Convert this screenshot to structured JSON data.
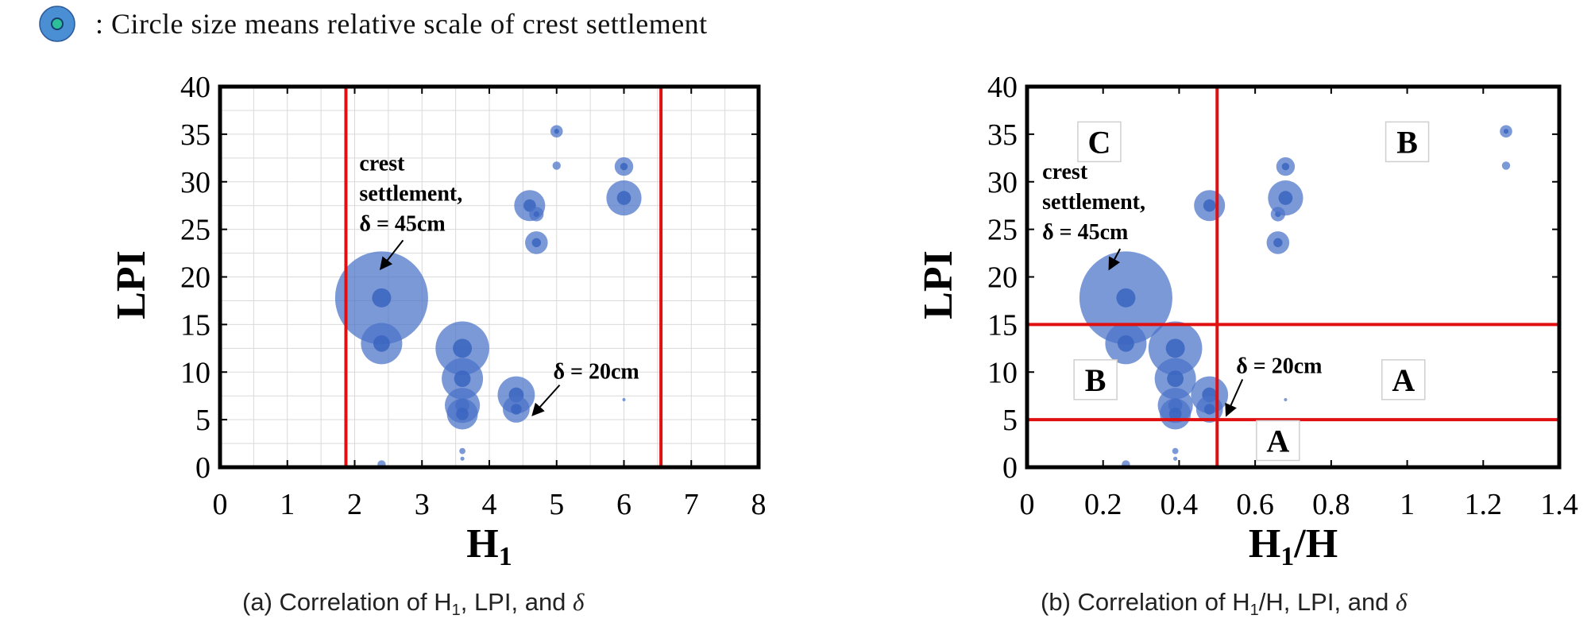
{
  "legend": {
    "icon": "circle-size-icon",
    "text": ": Circle size means relative scale of crest settlement"
  },
  "captions": {
    "a": {
      "pre": "(a) Correlation of H",
      "sub": "1",
      "post": ", LPI, and "
    },
    "b": {
      "pre": "(b) Correlation of H",
      "sub": "1",
      "post": "/H, LPI, and "
    },
    "delta": "δ"
  },
  "colors": {
    "bubble": "#4a72c8",
    "bubble_core": "#3a64c0",
    "red_line": "#e01010",
    "axis": "#000000",
    "grid": "#d9d9d9"
  },
  "chart_data": [
    {
      "type": "scatter",
      "variant": "bubble",
      "xlabel": "H",
      "xlabel_sub": "1",
      "ylabel": "LPI",
      "xlim": [
        0,
        8
      ],
      "ylim": [
        0,
        40
      ],
      "xticks": [
        "0",
        "1",
        "2",
        "3",
        "4",
        "5",
        "6",
        "7",
        "8"
      ],
      "yticks": [
        "0",
        "5",
        "10",
        "15",
        "20",
        "25",
        "30",
        "35",
        "40"
      ],
      "grid": true,
      "vlines": [
        1.87,
        6.55
      ],
      "points": [
        {
          "x": 2.4,
          "y": 17.8,
          "size": 45
        },
        {
          "x": 2.4,
          "y": 13.0,
          "size": 20
        },
        {
          "x": 3.6,
          "y": 12.5,
          "size": 26
        },
        {
          "x": 3.6,
          "y": 9.3,
          "size": 20
        },
        {
          "x": 3.6,
          "y": 6.5,
          "size": 17
        },
        {
          "x": 3.6,
          "y": 5.6,
          "size": 15
        },
        {
          "x": 4.4,
          "y": 7.6,
          "size": 18
        },
        {
          "x": 4.4,
          "y": 6.1,
          "size": 13
        },
        {
          "x": 4.6,
          "y": 27.5,
          "size": 15
        },
        {
          "x": 4.7,
          "y": 26.6,
          "size": 7
        },
        {
          "x": 4.7,
          "y": 23.6,
          "size": 11
        },
        {
          "x": 5.0,
          "y": 35.3,
          "size": 6
        },
        {
          "x": 5.0,
          "y": 31.7,
          "size": 4
        },
        {
          "x": 6.0,
          "y": 31.6,
          "size": 9
        },
        {
          "x": 6.0,
          "y": 28.3,
          "size": 17
        },
        {
          "x": 6.0,
          "y": 7.1,
          "size": 1.5
        },
        {
          "x": 3.6,
          "y": 1.7,
          "size": 3
        },
        {
          "x": 3.6,
          "y": 0.9,
          "size": 2
        },
        {
          "x": 2.4,
          "y": 0.3,
          "size": 4
        }
      ],
      "annotations": [
        {
          "text": [
            "crest",
            "settlement,",
            "δ = 45cm"
          ],
          "x": 2.07,
          "y": 31.2
        },
        {
          "text": [
            "δ = 20cm"
          ],
          "x": 4.95,
          "y": 9.3
        }
      ]
    },
    {
      "type": "scatter",
      "variant": "bubble",
      "xlabel": "H",
      "xlabel_sub": "1",
      "xlabel_post": "/H",
      "ylabel": "LPI",
      "xlim": [
        0,
        1.4
      ],
      "ylim": [
        0,
        40
      ],
      "xticks": [
        "0",
        "0.2",
        "0.4",
        "0.6",
        "0.8",
        "1",
        "1.2",
        "1.4"
      ],
      "yticks": [
        "0",
        "5",
        "10",
        "15",
        "20",
        "25",
        "30",
        "35",
        "40"
      ],
      "grid": false,
      "vlines": [
        0.5
      ],
      "hlines": [
        15,
        5
      ],
      "points": [
        {
          "x": 0.26,
          "y": 17.8,
          "size": 45
        },
        {
          "x": 0.26,
          "y": 13.0,
          "size": 20
        },
        {
          "x": 0.39,
          "y": 12.5,
          "size": 26
        },
        {
          "x": 0.39,
          "y": 9.3,
          "size": 20
        },
        {
          "x": 0.39,
          "y": 6.5,
          "size": 17
        },
        {
          "x": 0.39,
          "y": 5.6,
          "size": 15
        },
        {
          "x": 0.48,
          "y": 7.6,
          "size": 18
        },
        {
          "x": 0.48,
          "y": 6.1,
          "size": 13
        },
        {
          "x": 0.48,
          "y": 27.5,
          "size": 15
        },
        {
          "x": 0.66,
          "y": 26.6,
          "size": 7
        },
        {
          "x": 0.66,
          "y": 23.6,
          "size": 11
        },
        {
          "x": 0.68,
          "y": 31.6,
          "size": 9
        },
        {
          "x": 0.68,
          "y": 28.3,
          "size": 17
        },
        {
          "x": 0.68,
          "y": 7.1,
          "size": 1.5
        },
        {
          "x": 1.26,
          "y": 35.3,
          "size": 6
        },
        {
          "x": 1.26,
          "y": 31.7,
          "size": 4
        },
        {
          "x": 0.39,
          "y": 1.7,
          "size": 3
        },
        {
          "x": 0.39,
          "y": 0.9,
          "size": 2
        },
        {
          "x": 0.26,
          "y": 0.3,
          "size": 4
        }
      ],
      "region_labels": [
        {
          "text": "C",
          "x": 0.19,
          "y": 34.2
        },
        {
          "text": "B",
          "x": 1.0,
          "y": 34.2
        },
        {
          "text": "B",
          "x": 0.18,
          "y": 9.2
        },
        {
          "text": "A",
          "x": 0.99,
          "y": 9.2
        },
        {
          "text": "A",
          "x": 0.66,
          "y": 2.8
        }
      ],
      "annotations": [
        {
          "text": [
            "crest",
            "settlement,",
            "δ = 45cm"
          ],
          "x": 0.04,
          "y": 30.3
        },
        {
          "text": [
            "δ = 20cm"
          ],
          "x": 0.55,
          "y": 9.9
        }
      ]
    }
  ]
}
